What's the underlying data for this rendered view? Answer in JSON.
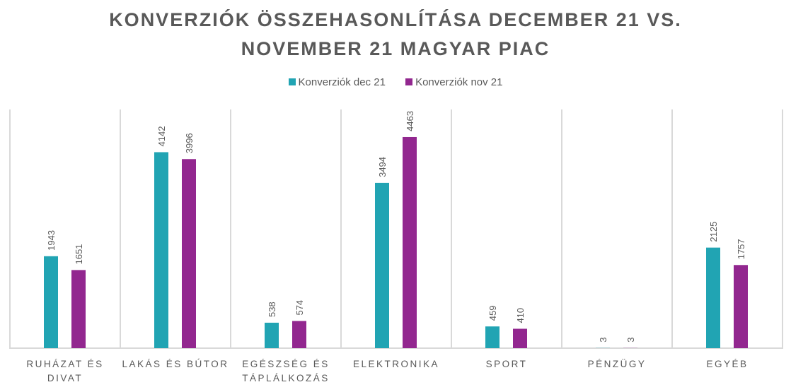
{
  "chart_data": {
    "type": "bar",
    "title_lines": [
      "KONVERZIÓK ÖSSZEHASONLÍTÁSA DECEMBER 21 VS.",
      "NOVEMBER 21 MAGYAR PIAC"
    ],
    "categories": [
      [
        "RUHÁZAT ÉS",
        "DIVAT"
      ],
      [
        "LAKÁS ÉS BÚTOR"
      ],
      [
        "EGÉSZSÉG ÉS",
        "TÁPLÁLKOZÁS"
      ],
      [
        "ELEKTRONIKA"
      ],
      [
        "SPORT"
      ],
      [
        "PÉNZÜGY"
      ],
      [
        "EGYÉB"
      ]
    ],
    "series": [
      {
        "name": "Konverziók dec 21",
        "color": "#21A4B3",
        "values": [
          1943,
          4142,
          538,
          3494,
          459,
          3,
          2125
        ]
      },
      {
        "name": "Konverziók nov 21",
        "color": "#92278F",
        "values": [
          1651,
          3996,
          574,
          4463,
          410,
          3,
          1757
        ]
      }
    ],
    "ylim": [
      0,
      5000
    ],
    "legend": "top",
    "grid": false
  }
}
